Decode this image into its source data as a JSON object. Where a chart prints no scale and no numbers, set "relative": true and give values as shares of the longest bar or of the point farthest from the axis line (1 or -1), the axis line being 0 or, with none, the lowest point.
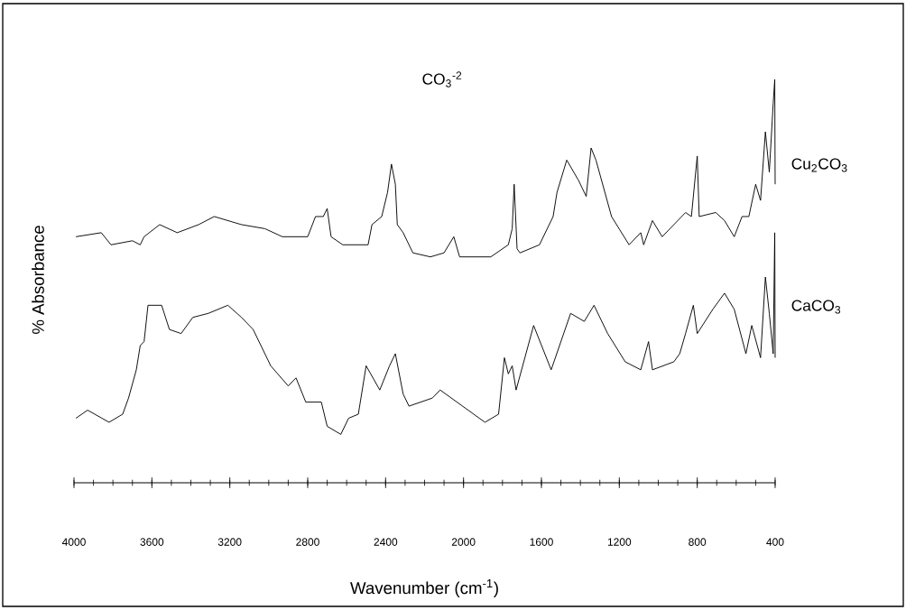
{
  "chart_data": {
    "type": "line",
    "relative": true,
    "xlabel": "Wavenumber (cm$^{-1}$)",
    "ylabel": "% Absorbance",
    "annotations": [
      "CO$_{3}$$^{-2}$"
    ],
    "xlim": [
      4000,
      400
    ],
    "xticks": [
      4000,
      {
        "value": 3900,
        "label": null
      },
      {
        "value": 3800,
        "label": null
      },
      {
        "value": 3700,
        "label": null
      },
      3600,
      {
        "value": 3500,
        "label": null
      },
      {
        "value": 3400,
        "label": null
      },
      {
        "value": 3300,
        "label": null
      },
      3200,
      {
        "value": 3100,
        "label": null
      },
      {
        "value": 3000,
        "label": null
      },
      {
        "value": 2900,
        "label": null
      },
      2800,
      {
        "value": 2700,
        "label": null
      },
      {
        "value": 2600,
        "label": null
      },
      {
        "value": 2500,
        "label": null
      },
      2400,
      {
        "value": 2300,
        "label": null
      },
      {
        "value": 2200,
        "label": null
      },
      {
        "value": 2100,
        "label": null
      },
      2000,
      {
        "value": 1900,
        "label": null
      },
      {
        "value": 1800,
        "label": null
      },
      {
        "value": 1700,
        "label": null
      },
      1600,
      {
        "value": 1500,
        "label": null
      },
      {
        "value": 1400,
        "label": null
      },
      {
        "value": 1300,
        "label": null
      },
      1200,
      {
        "value": 1100,
        "label": null
      },
      {
        "value": 1000,
        "label": null
      },
      {
        "value": 900,
        "label": null
      },
      800,
      {
        "value": 700,
        "label": null
      },
      {
        "value": 600,
        "label": null
      },
      {
        "value": 500,
        "label": null
      },
      400
    ],
    "series": [
      {
        "name": "Cu$_{2}$CO$_{3}$",
        "color": "#000000",
        "x": [
          3990,
          3860,
          3810,
          3700,
          3660,
          3640,
          3560,
          3470,
          3360,
          3280,
          3140,
          3020,
          2930,
          2800,
          2760,
          2720,
          2700,
          2680,
          2620,
          2490,
          2470,
          2420,
          2390,
          2370,
          2350,
          2340,
          2310,
          2260,
          2170,
          2100,
          2050,
          2020,
          1860,
          1770,
          1750,
          1740,
          1725,
          1710,
          1610,
          1540,
          1520,
          1470,
          1410,
          1370,
          1345,
          1320,
          1240,
          1150,
          1090,
          1075,
          1030,
          980,
          860,
          830,
          800,
          790,
          705,
          660,
          610,
          570,
          535,
          500,
          475,
          450,
          430,
          410,
          402,
          400
        ],
        "values": [
          0.61,
          0.62,
          0.59,
          0.6,
          0.59,
          0.61,
          0.64,
          0.62,
          0.64,
          0.66,
          0.64,
          0.63,
          0.61,
          0.61,
          0.66,
          0.66,
          0.68,
          0.61,
          0.59,
          0.59,
          0.64,
          0.66,
          0.72,
          0.79,
          0.74,
          0.64,
          0.62,
          0.57,
          0.56,
          0.57,
          0.61,
          0.56,
          0.56,
          0.59,
          0.63,
          0.74,
          0.58,
          0.57,
          0.59,
          0.66,
          0.72,
          0.8,
          0.75,
          0.71,
          0.83,
          0.8,
          0.66,
          0.59,
          0.62,
          0.59,
          0.65,
          0.61,
          0.67,
          0.66,
          0.81,
          0.66,
          0.67,
          0.65,
          0.61,
          0.66,
          0.66,
          0.74,
          0.7,
          0.87,
          0.77,
          0.94,
          1.0,
          0.74
        ]
      },
      {
        "name": "CaCO$_{3}$",
        "color": "#000000",
        "x": [
          3990,
          3930,
          3820,
          3750,
          3720,
          3680,
          3660,
          3640,
          3620,
          3590,
          3550,
          3510,
          3450,
          3390,
          3310,
          3210,
          3140,
          3080,
          2990,
          2900,
          2860,
          2810,
          2730,
          2700,
          2630,
          2590,
          2540,
          2500,
          2430,
          2380,
          2350,
          2310,
          2280,
          2160,
          2120,
          1890,
          1820,
          1790,
          1770,
          1750,
          1730,
          1640,
          1550,
          1450,
          1380,
          1330,
          1260,
          1170,
          1090,
          1050,
          1030,
          920,
          890,
          860,
          820,
          800,
          720,
          660,
          610,
          550,
          520,
          475,
          450,
          430,
          410,
          402,
          400
        ],
        "values": [
          0.16,
          0.18,
          0.15,
          0.17,
          0.21,
          0.28,
          0.34,
          0.35,
          0.44,
          0.44,
          0.44,
          0.38,
          0.37,
          0.41,
          0.42,
          0.44,
          0.41,
          0.38,
          0.29,
          0.24,
          0.26,
          0.2,
          0.2,
          0.14,
          0.12,
          0.16,
          0.17,
          0.29,
          0.23,
          0.29,
          0.32,
          0.22,
          0.19,
          0.21,
          0.23,
          0.15,
          0.17,
          0.31,
          0.27,
          0.29,
          0.23,
          0.39,
          0.28,
          0.42,
          0.4,
          0.44,
          0.37,
          0.3,
          0.28,
          0.35,
          0.28,
          0.3,
          0.32,
          0.37,
          0.44,
          0.37,
          0.43,
          0.47,
          0.43,
          0.32,
          0.39,
          0.31,
          0.51,
          0.42,
          0.32,
          0.62,
          0.31
        ]
      }
    ]
  }
}
